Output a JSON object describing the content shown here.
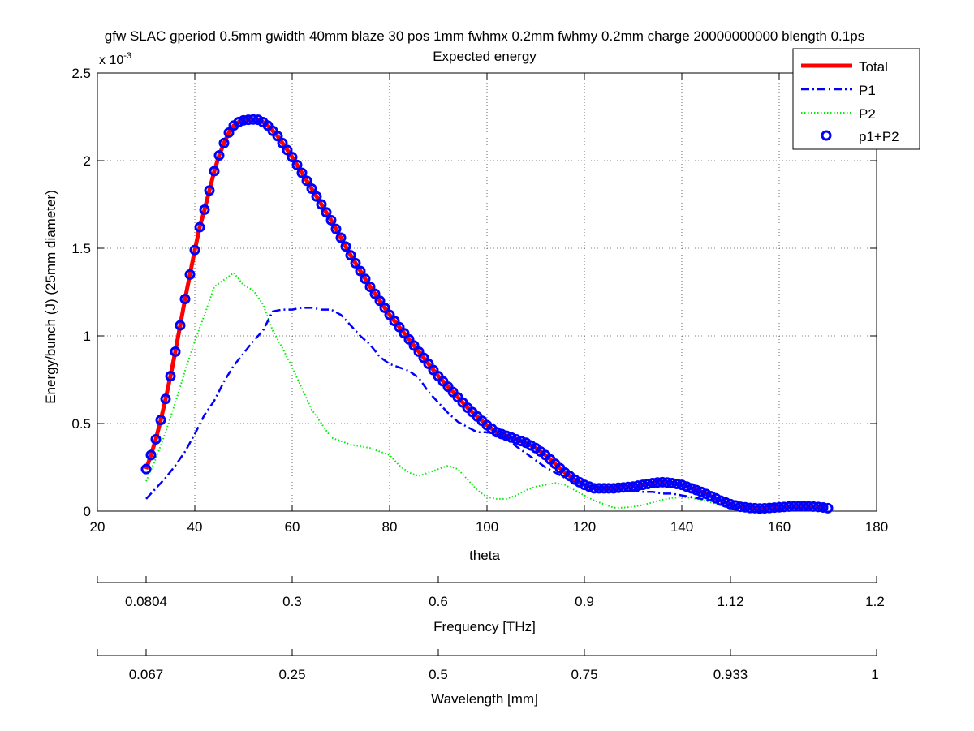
{
  "chart_data": {
    "type": "line",
    "title": "gfw SLAC gperiod 0.5mm gwidth 40mm blaze 30 pos 1mm fwhmx 0.2mm fwhmy 0.2mm charge 20000000000 blength 0.1ps",
    "subtitle": "Expected energy",
    "xlabel": "theta",
    "ylabel": "Energy/bunch (J) (25mm diameter)",
    "y_multiplier": "x 10",
    "y_multiplier_exp": "-3",
    "xlim": [
      20,
      180
    ],
    "ylim": [
      0,
      2.5
    ],
    "x_ticks": [
      20,
      40,
      60,
      80,
      100,
      120,
      140,
      160,
      180
    ],
    "y_ticks": [
      0,
      0.5,
      1,
      1.5,
      2,
      2.5
    ],
    "grid": true,
    "legend_position": "top-right",
    "series": [
      {
        "name": "Total",
        "style": "solid",
        "color": "#ff0000",
        "x": [
          30,
          31,
          32,
          33,
          34,
          35,
          36,
          37,
          38,
          39,
          40,
          41,
          42,
          43,
          44,
          45,
          46,
          47,
          48,
          49,
          50,
          51,
          52,
          53,
          54,
          55,
          56,
          57,
          58,
          59,
          60,
          62,
          64,
          66,
          68,
          70,
          72,
          74,
          76,
          78,
          80,
          82,
          84,
          86,
          88,
          90,
          92,
          94,
          96,
          98,
          100,
          102,
          104,
          106,
          108,
          110,
          112,
          114,
          116,
          118,
          120,
          122,
          124,
          126,
          128,
          130,
          132,
          134,
          136,
          138,
          140,
          142,
          144,
          146,
          148,
          150,
          152,
          154,
          156,
          158,
          160,
          162,
          164,
          166,
          168,
          170
        ],
        "y": [
          0.24,
          0.32,
          0.41,
          0.52,
          0.64,
          0.77,
          0.91,
          1.06,
          1.21,
          1.35,
          1.49,
          1.62,
          1.72,
          1.83,
          1.94,
          2.03,
          2.1,
          2.16,
          2.2,
          2.22,
          2.23,
          2.235,
          2.235,
          2.23,
          2.22,
          2.2,
          2.17,
          2.14,
          2.1,
          2.06,
          2.02,
          1.93,
          1.84,
          1.75,
          1.66,
          1.56,
          1.46,
          1.37,
          1.28,
          1.2,
          1.12,
          1.05,
          0.98,
          0.91,
          0.84,
          0.77,
          0.71,
          0.65,
          0.59,
          0.54,
          0.49,
          0.45,
          0.43,
          0.41,
          0.39,
          0.36,
          0.32,
          0.27,
          0.22,
          0.18,
          0.15,
          0.13,
          0.13,
          0.13,
          0.135,
          0.14,
          0.15,
          0.16,
          0.165,
          0.16,
          0.15,
          0.13,
          0.11,
          0.085,
          0.06,
          0.04,
          0.025,
          0.018,
          0.015,
          0.018,
          0.022,
          0.026,
          0.028,
          0.027,
          0.024,
          0.017
        ]
      },
      {
        "name": "P1",
        "style": "dashdot",
        "color": "#0000ff",
        "x": [
          30,
          32,
          34,
          36,
          38,
          40,
          42,
          44,
          46,
          48,
          50,
          52,
          54,
          56,
          58,
          60,
          62,
          64,
          66,
          68,
          70,
          72,
          74,
          76,
          78,
          80,
          82,
          84,
          86,
          88,
          90,
          92,
          94,
          96,
          98,
          100,
          102,
          104,
          106,
          108,
          110,
          112,
          114,
          116,
          118,
          120,
          122,
          124,
          126,
          128,
          130,
          132,
          134,
          136,
          138,
          140,
          142,
          144,
          146,
          148,
          150
        ],
        "y": [
          0.07,
          0.13,
          0.19,
          0.26,
          0.34,
          0.44,
          0.55,
          0.63,
          0.74,
          0.83,
          0.9,
          0.97,
          1.03,
          1.14,
          1.15,
          1.15,
          1.16,
          1.16,
          1.15,
          1.15,
          1.12,
          1.06,
          1.0,
          0.95,
          0.88,
          0.84,
          0.82,
          0.8,
          0.76,
          0.68,
          0.62,
          0.56,
          0.51,
          0.48,
          0.45,
          0.45,
          0.44,
          0.41,
          0.37,
          0.33,
          0.29,
          0.25,
          0.22,
          0.19,
          0.17,
          0.15,
          0.14,
          0.13,
          0.13,
          0.12,
          0.12,
          0.11,
          0.11,
          0.1,
          0.1,
          0.09,
          0.08,
          0.07,
          0.06,
          0.05,
          0.03
        ]
      },
      {
        "name": "P2",
        "style": "dotted",
        "color": "#00ee00",
        "x": [
          30,
          32,
          34,
          36,
          38,
          40,
          42,
          44,
          46,
          48,
          50,
          52,
          54,
          56,
          58,
          60,
          62,
          64,
          66,
          68,
          70,
          72,
          74,
          76,
          78,
          80,
          82,
          84,
          86,
          88,
          90,
          92,
          94,
          96,
          98,
          100,
          102,
          104,
          106,
          108,
          110,
          112,
          114,
          116,
          118,
          120,
          122,
          124,
          126,
          128,
          130,
          132,
          134,
          136,
          138,
          140,
          142,
          144,
          146,
          148,
          150
        ],
        "y": [
          0.17,
          0.3,
          0.45,
          0.62,
          0.8,
          0.97,
          1.12,
          1.28,
          1.32,
          1.36,
          1.29,
          1.26,
          1.18,
          1.03,
          0.93,
          0.82,
          0.7,
          0.58,
          0.5,
          0.42,
          0.4,
          0.38,
          0.37,
          0.36,
          0.34,
          0.32,
          0.26,
          0.22,
          0.2,
          0.22,
          0.24,
          0.26,
          0.24,
          0.18,
          0.12,
          0.08,
          0.07,
          0.07,
          0.09,
          0.12,
          0.14,
          0.15,
          0.16,
          0.15,
          0.12,
          0.09,
          0.06,
          0.04,
          0.02,
          0.02,
          0.025,
          0.035,
          0.05,
          0.065,
          0.075,
          0.08,
          0.075,
          0.065,
          0.05,
          0.035,
          0.02
        ]
      },
      {
        "name": "p1+P2",
        "style": "circle",
        "color": "#0000ff",
        "x": [
          30,
          31,
          32,
          33,
          34,
          35,
          36,
          37,
          38,
          39,
          40,
          41,
          42,
          43,
          44,
          45,
          46,
          47,
          48,
          49,
          50,
          51,
          52,
          53,
          54,
          55,
          56,
          57,
          58,
          59,
          60,
          61,
          62,
          63,
          64,
          65,
          66,
          67,
          68,
          69,
          70,
          71,
          72,
          73,
          74,
          75,
          76,
          77,
          78,
          79,
          80,
          81,
          82,
          83,
          84,
          85,
          86,
          87,
          88,
          89,
          90,
          91,
          92,
          93,
          94,
          95,
          96,
          97,
          98,
          99,
          100,
          101,
          102,
          103,
          104,
          105,
          106,
          107,
          108,
          109,
          110,
          111,
          112,
          113,
          114,
          115,
          116,
          117,
          118,
          119,
          120,
          121,
          122,
          123,
          124,
          125,
          126,
          127,
          128,
          129,
          130,
          131,
          132,
          133,
          134,
          135,
          136,
          137,
          138,
          139,
          140,
          141,
          142,
          143,
          144,
          145,
          146,
          147,
          148,
          149,
          150,
          151,
          152,
          153,
          154,
          155,
          156,
          157,
          158,
          159,
          160,
          161,
          162,
          163,
          164,
          165,
          166,
          167,
          168,
          169,
          170
        ],
        "y": [
          0.24,
          0.32,
          0.41,
          0.52,
          0.64,
          0.77,
          0.91,
          1.06,
          1.21,
          1.35,
          1.49,
          1.62,
          1.72,
          1.83,
          1.94,
          2.03,
          2.1,
          2.16,
          2.2,
          2.22,
          2.23,
          2.233,
          2.235,
          2.233,
          2.22,
          2.2,
          2.17,
          2.14,
          2.1,
          2.06,
          2.02,
          1.975,
          1.93,
          1.885,
          1.84,
          1.795,
          1.75,
          1.705,
          1.66,
          1.61,
          1.56,
          1.51,
          1.46,
          1.415,
          1.37,
          1.325,
          1.28,
          1.24,
          1.2,
          1.16,
          1.12,
          1.085,
          1.05,
          1.015,
          0.98,
          0.945,
          0.91,
          0.875,
          0.84,
          0.805,
          0.77,
          0.74,
          0.71,
          0.68,
          0.65,
          0.62,
          0.59,
          0.565,
          0.54,
          0.515,
          0.49,
          0.47,
          0.45,
          0.44,
          0.43,
          0.42,
          0.41,
          0.4,
          0.39,
          0.375,
          0.36,
          0.34,
          0.32,
          0.295,
          0.27,
          0.245,
          0.22,
          0.2,
          0.18,
          0.165,
          0.15,
          0.14,
          0.13,
          0.13,
          0.13,
          0.13,
          0.13,
          0.133,
          0.135,
          0.138,
          0.14,
          0.145,
          0.15,
          0.155,
          0.16,
          0.163,
          0.165,
          0.163,
          0.16,
          0.155,
          0.15,
          0.14,
          0.13,
          0.12,
          0.11,
          0.098,
          0.085,
          0.073,
          0.06,
          0.05,
          0.04,
          0.033,
          0.025,
          0.022,
          0.018,
          0.017,
          0.015,
          0.016,
          0.018,
          0.02,
          0.022,
          0.024,
          0.026,
          0.027,
          0.028,
          0.028,
          0.027,
          0.026,
          0.024,
          0.021,
          0.017
        ]
      }
    ],
    "secondary_axes": [
      {
        "label": "Frequency [THz]",
        "tick_labels": [
          "0.0804",
          "0.3",
          "0.6",
          "0.9",
          "1.12",
          "1.2"
        ],
        "tick_theta": [
          30,
          60,
          90,
          120,
          150,
          180
        ]
      },
      {
        "label": "Wavelength [mm]",
        "tick_labels": [
          "0.067",
          "0.25",
          "0.5",
          "0.75",
          "0.933",
          "1"
        ],
        "tick_theta": [
          30,
          60,
          90,
          120,
          150,
          180
        ]
      }
    ]
  }
}
